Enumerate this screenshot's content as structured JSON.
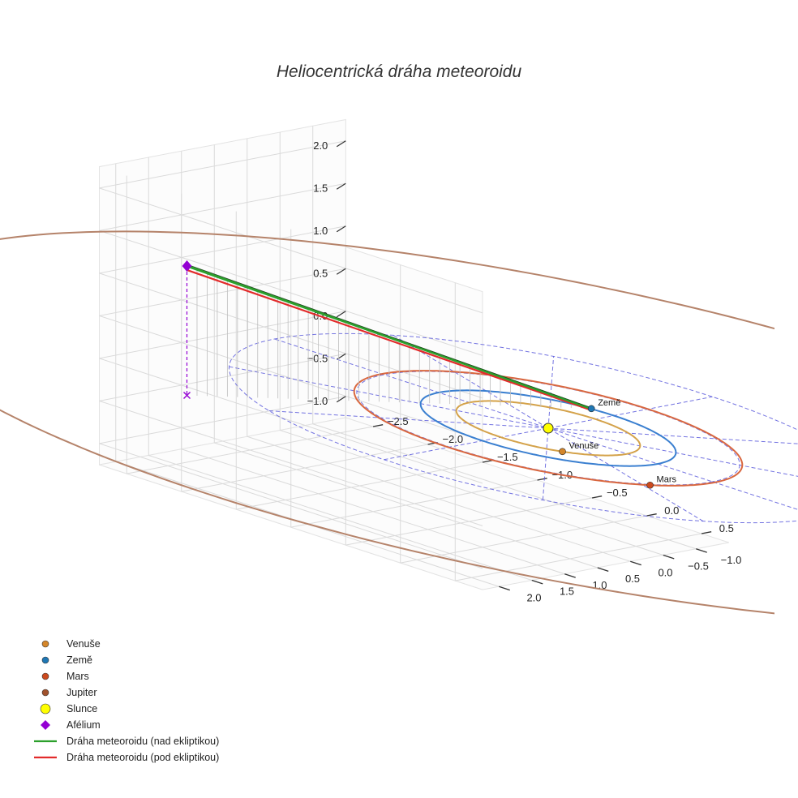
{
  "chart_data": {
    "type": "scatter",
    "projection": "3d",
    "title": "Heliocentrická dráha meteoroidu",
    "axes": {
      "x": {
        "ticks": [
          -2.5,
          -2.0,
          -1.5,
          -1.0,
          -0.5,
          0.0,
          0.5
        ],
        "tick_labels": [
          "−2.5",
          "−2.0",
          "−1.5",
          "−1.0",
          "−0.5",
          "0.0",
          "0.5"
        ],
        "range": [
          -2.75,
          0.75
        ]
      },
      "y": {
        "ticks": [
          -1.0,
          -0.5,
          0.0,
          0.5,
          1.0,
          1.5,
          2.0
        ],
        "tick_labels": [
          "−1.0",
          "−0.5",
          "0.0",
          "0.5",
          "1.0",
          "1.5",
          "2.0"
        ],
        "range": [
          -1.5,
          2.25
        ]
      },
      "z": {
        "ticks": [
          -1.0,
          -0.5,
          0.0,
          0.5,
          1.0,
          1.5,
          2.0
        ],
        "tick_labels": [
          "−1.0",
          "−0.5",
          "0.0",
          "0.5",
          "1.0",
          "1.5",
          "2.0"
        ],
        "range": [
          -1.25,
          2.25
        ]
      }
    },
    "grid": true,
    "ecliptic_reference_circles_au": [
      1.5,
      2.5
    ],
    "orbits": [
      {
        "name": "Venuše",
        "radius_au": 0.72,
        "color": "#d4a24a"
      },
      {
        "name": "Země",
        "radius_au": 1.0,
        "color": "#3a7fd0"
      },
      {
        "name": "Mars",
        "radius_au": 1.52,
        "color": "#d9673f"
      },
      {
        "name": "Jupiter",
        "radius_au": 5.2,
        "color": "#b5836a"
      }
    ],
    "planets": [
      {
        "name": "Venuše",
        "label": "Venuše",
        "color": "#d4862a",
        "position": [
          0.46,
          0.55,
          0.0
        ]
      },
      {
        "name": "Země",
        "label": "Země",
        "color": "#1f77b4",
        "position": [
          -0.2,
          -0.99,
          0.0
        ]
      },
      {
        "name": "Mars",
        "label": "Mars",
        "color": "#cc4a1e",
        "position": [
          1.35,
          0.7,
          0.0
        ]
      }
    ],
    "sun": {
      "name": "Slunce",
      "color": "#ffff00",
      "position": [
        0.0,
        0.0,
        0.0
      ]
    },
    "aphelion": {
      "name": "Afélium",
      "color": "#9400d3",
      "position": [
        -1.8,
        2.5,
        1.52
      ],
      "projection_on_ecliptic": [
        -1.8,
        2.5,
        0.0
      ]
    },
    "meteoroid_track": {
      "from": [
        -1.8,
        2.5,
        1.52
      ],
      "to": [
        -0.2,
        -0.99,
        0.0
      ],
      "segments": [
        {
          "name": "Dráha meteoroidu (nad ekliptikou)",
          "color": "#2ca02c"
        },
        {
          "name": "Dráha meteoroidu (pod ekliptikou)",
          "color": "#e22b2b"
        }
      ]
    },
    "legend": {
      "position": "bottom-left",
      "entries": [
        {
          "label": "Venuše",
          "marker": "circle",
          "color": "#d4862a"
        },
        {
          "label": "Země",
          "marker": "circle",
          "color": "#1f77b4"
        },
        {
          "label": "Mars",
          "marker": "circle",
          "color": "#cc4a1e"
        },
        {
          "label": "Jupiter",
          "marker": "circle",
          "color": "#a0522d"
        },
        {
          "label": "Slunce",
          "marker": "circle-large",
          "color": "#ffff00"
        },
        {
          "label": "Afélium",
          "marker": "diamond",
          "color": "#9400d3"
        },
        {
          "label": "Dráha meteoroidu (nad ekliptikou)",
          "marker": "line",
          "color": "#2ca02c"
        },
        {
          "label": "Dráha meteoroidu (pod ekliptikou)",
          "marker": "line",
          "color": "#e22b2b"
        }
      ]
    }
  }
}
